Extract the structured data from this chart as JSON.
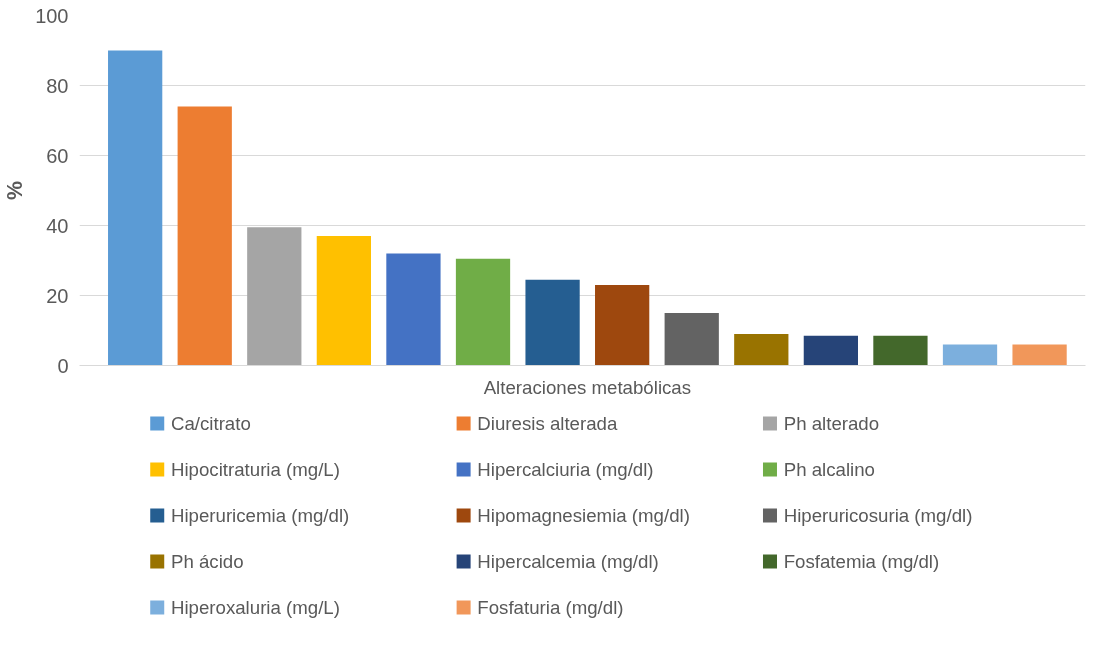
{
  "chart_data": {
    "type": "bar",
    "ylabel": "%",
    "categories": [
      "Alteraciones metabólicas"
    ],
    "ylim": [
      0,
      100
    ],
    "yticks": [
      0,
      20,
      40,
      60,
      80,
      100
    ],
    "grid": "y",
    "legend": "bottom",
    "series": [
      {
        "name": "Ca/citrato",
        "color": "#5b9bd5",
        "values": [
          90
        ]
      },
      {
        "name": "Diuresis alterada",
        "color": "#ed7d31",
        "values": [
          74
        ]
      },
      {
        "name": "Ph alterado",
        "color": "#a5a5a5",
        "values": [
          39.5
        ]
      },
      {
        "name": "Hipocitraturia (mg/L)",
        "color": "#ffc000",
        "values": [
          37
        ]
      },
      {
        "name": "Hipercalciuria (mg/dl)",
        "color": "#4472c4",
        "values": [
          32
        ]
      },
      {
        "name": "Ph alcalino",
        "color": "#70ad47",
        "values": [
          30.5
        ]
      },
      {
        "name": "Hiperuricemia (mg/dl)",
        "color": "#255e91",
        "values": [
          24.5
        ]
      },
      {
        "name": "Hipomagnesiemia (mg/dl)",
        "color": "#9e480e",
        "values": [
          23
        ]
      },
      {
        "name": "Hiperuricosuria (mg/dl)",
        "color": "#636363",
        "values": [
          15
        ]
      },
      {
        "name": "Ph ácido",
        "color": "#997300",
        "values": [
          9
        ]
      },
      {
        "name": "Hipercalcemia (mg/dl)",
        "color": "#264478",
        "values": [
          8.5
        ]
      },
      {
        "name": "Fosfatemia (mg/dl)",
        "color": "#43682b",
        "values": [
          8.5
        ]
      },
      {
        "name": "Hiperoxaluria (mg/L)",
        "color": "#7cafdd",
        "values": [
          6
        ]
      },
      {
        "name": "Fosfaturia (mg/dl)",
        "color": "#f1975a",
        "values": [
          6
        ]
      }
    ]
  }
}
